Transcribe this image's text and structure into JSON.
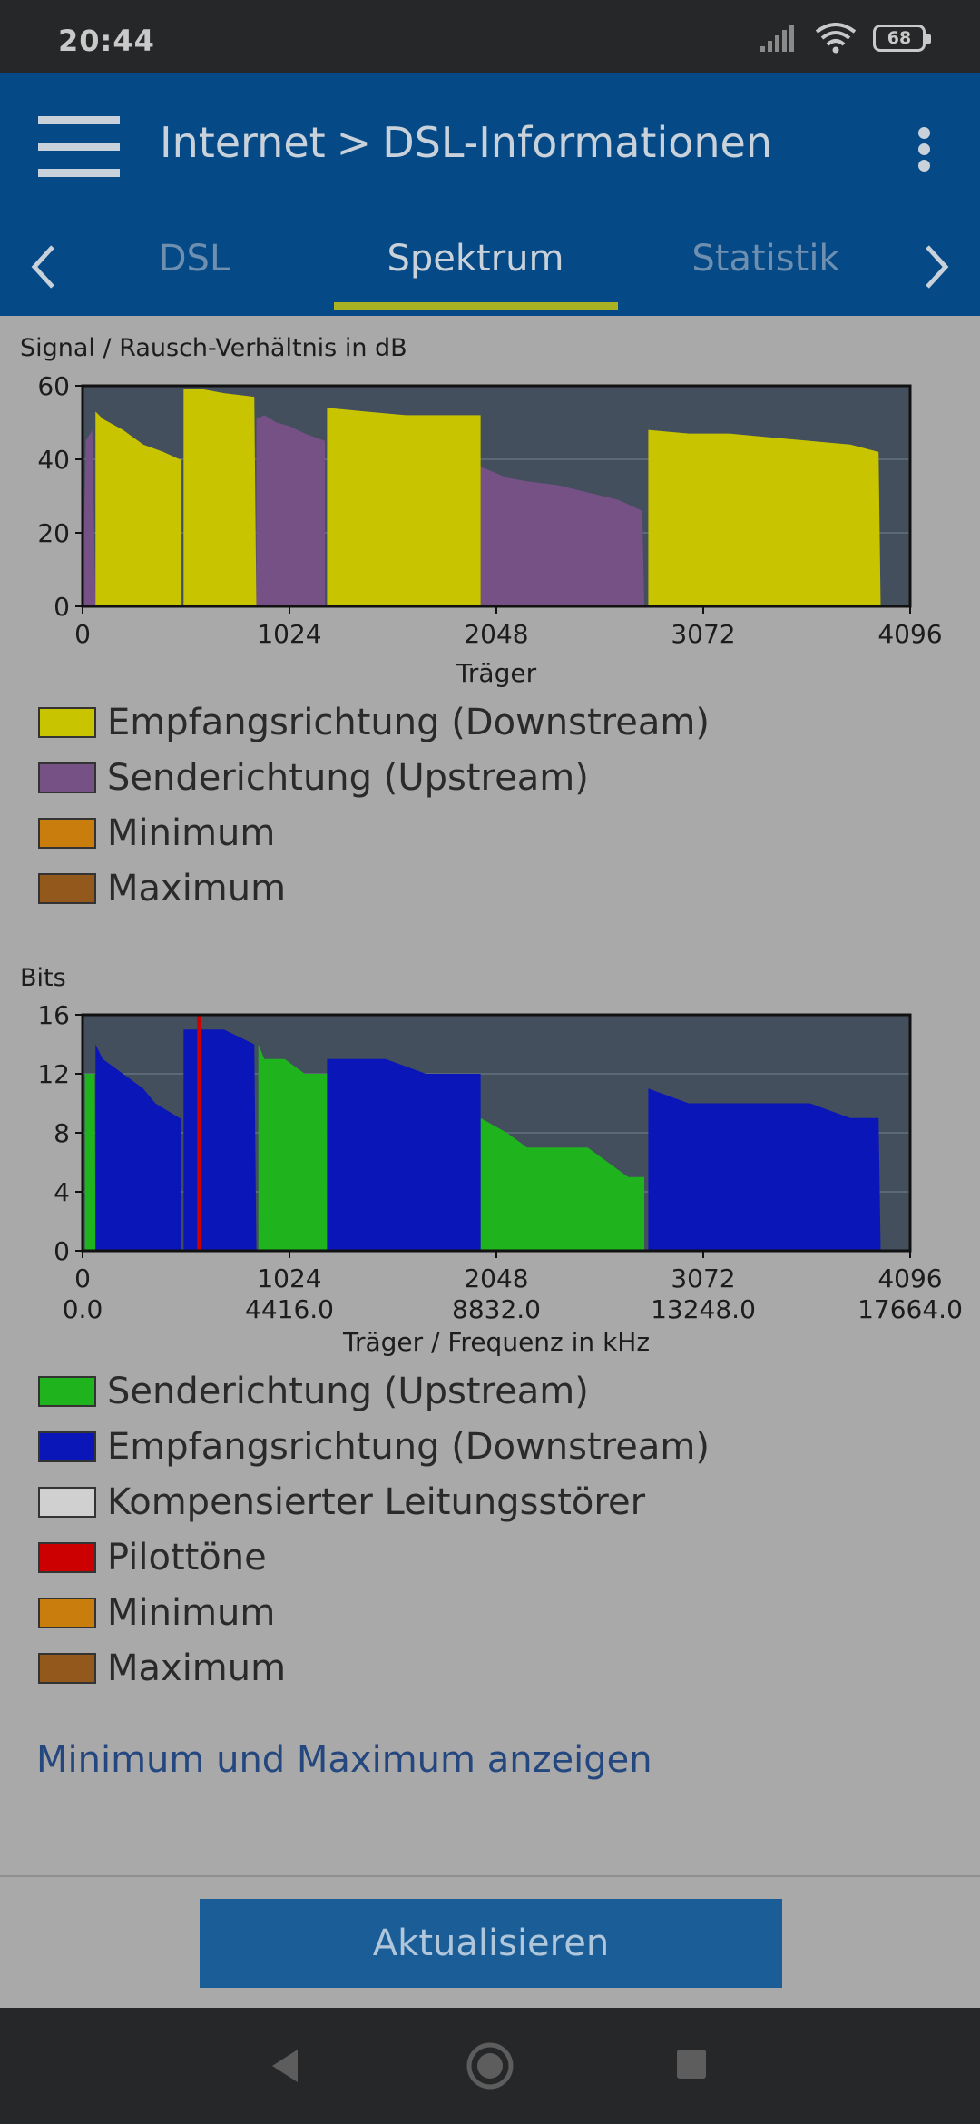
{
  "status_bar": {
    "time": "20:44",
    "battery": "68"
  },
  "header": {
    "crumb_root": "Internet",
    "crumb_sep": ">",
    "crumb_page": "DSL-Informationen"
  },
  "tabs": [
    {
      "label": "DSL"
    },
    {
      "label": "Spektrum"
    },
    {
      "label": "Statistik"
    }
  ],
  "snr": {
    "heading": "Signal / Rausch-Verhältnis in dB",
    "legend": [
      {
        "label": "Empfangsrichtung (Downstream)",
        "color": "#c8c400"
      },
      {
        "label": "Senderichtung (Upstream)",
        "color": "#755185"
      },
      {
        "label": "Minimum",
        "color": "#c97d0d"
      },
      {
        "label": "Maximum",
        "color": "#93591c"
      }
    ]
  },
  "bits": {
    "heading": "Bits",
    "legend": [
      {
        "label": "Senderichtung (Upstream)",
        "color": "#1fb41e"
      },
      {
        "label": "Empfangsrichtung (Downstream)",
        "color": "#0a16b8"
      },
      {
        "label": "Kompensierter Leitungsstörer",
        "color": "#d0d0d0"
      },
      {
        "label": "Pilottöne",
        "color": "#cc0000"
      },
      {
        "label": "Minimum",
        "color": "#c97d0d"
      },
      {
        "label": "Maximum",
        "color": "#93591c"
      }
    ]
  },
  "chart_data": [
    {
      "type": "area",
      "title": "Signal / Rausch-Verhältnis in dB",
      "xlabel": "Träger",
      "ylabel": "",
      "xlim": [
        0,
        4096
      ],
      "ylim": [
        0,
        60
      ],
      "x_ticks": [
        "0",
        "1024",
        "2048",
        "3072",
        "4096"
      ],
      "y_ticks": [
        "0",
        "20",
        "40",
        "60"
      ],
      "series": [
        {
          "name": "Senderichtung (Upstream)",
          "color": "#755185",
          "segments": [
            [
              [
                0,
                0
              ],
              [
                16,
                45
              ],
              [
                48,
                48
              ],
              [
                64,
                0
              ]
            ],
            [
              [
                860,
                51
              ],
              [
                900,
                52
              ],
              [
                960,
                50
              ],
              [
                1024,
                49
              ],
              [
                1100,
                47
              ],
              [
                1200,
                45
              ]
            ],
            [
              [
                1970,
                38
              ],
              [
                2100,
                35
              ],
              [
                2200,
                34
              ],
              [
                2350,
                33
              ],
              [
                2500,
                31
              ],
              [
                2650,
                29
              ],
              [
                2770,
                26
              ],
              [
                2780,
                0
              ]
            ]
          ]
        },
        {
          "name": "Empfangsrichtung (Downstream)",
          "color": "#c8c400",
          "segments": [
            [
              [
                64,
                53
              ],
              [
                100,
                51
              ],
              [
                200,
                48
              ],
              [
                300,
                44
              ],
              [
                400,
                42
              ],
              [
                480,
                40
              ],
              [
                490,
                40
              ]
            ],
            [
              [
                500,
                59
              ],
              [
                600,
                59
              ],
              [
                700,
                58
              ],
              [
                850,
                57
              ],
              [
                860,
                0
              ]
            ],
            [
              [
                1210,
                54
              ],
              [
                1400,
                53
              ],
              [
                1600,
                52
              ],
              [
                1800,
                52
              ],
              [
                1970,
                52
              ]
            ],
            [
              [
                2800,
                48
              ],
              [
                3000,
                47
              ],
              [
                3200,
                47
              ],
              [
                3400,
                46
              ],
              [
                3600,
                45
              ],
              [
                3800,
                44
              ],
              [
                3940,
                42
              ],
              [
                3950,
                0
              ]
            ]
          ]
        }
      ]
    },
    {
      "type": "area",
      "title": "Bits",
      "xlabel": "Träger / Frequenz in kHz",
      "ylabel": "",
      "xlim": [
        0,
        4096
      ],
      "ylim": [
        0,
        16
      ],
      "x_ticks": [
        "0",
        "1024",
        "2048",
        "3072",
        "4096"
      ],
      "x_ticks_secondary": [
        "0.0",
        "4416.0",
        "8832.0",
        "13248.0",
        "17664.0"
      ],
      "y_ticks": [
        "0",
        "4",
        "8",
        "12",
        "16"
      ],
      "series": [
        {
          "name": "Senderichtung (Upstream)",
          "color": "#1fb41e",
          "segments": [
            [
              [
                12,
                12
              ],
              [
                60,
                12
              ],
              [
                64,
                0
              ]
            ],
            [
              [
                870,
                14
              ],
              [
                900,
                13
              ],
              [
                1000,
                13
              ],
              [
                1100,
                12
              ],
              [
                1210,
                12
              ]
            ],
            [
              [
                1970,
                9
              ],
              [
                2100,
                8
              ],
              [
                2200,
                7
              ],
              [
                2400,
                7
              ],
              [
                2500,
                7
              ],
              [
                2600,
                6
              ],
              [
                2700,
                5
              ],
              [
                2780,
                5
              ]
            ]
          ]
        },
        {
          "name": "Empfangsrichtung (Downstream)",
          "color": "#0a16b8",
          "segments": [
            [
              [
                64,
                14
              ],
              [
                100,
                13
              ],
              [
                200,
                12
              ],
              [
                300,
                11
              ],
              [
                360,
                10
              ],
              [
                480,
                9
              ],
              [
                490,
                9
              ]
            ],
            [
              [
                500,
                15
              ],
              [
                700,
                15
              ],
              [
                850,
                14
              ],
              [
                860,
                0
              ]
            ],
            [
              [
                1210,
                13
              ],
              [
                1500,
                13
              ],
              [
                1700,
                12
              ],
              [
                1970,
                12
              ]
            ],
            [
              [
                2800,
                11
              ],
              [
                3000,
                10
              ],
              [
                3300,
                10
              ],
              [
                3600,
                10
              ],
              [
                3800,
                9
              ],
              [
                3940,
                9
              ],
              [
                3950,
                0
              ]
            ]
          ]
        },
        {
          "name": "Pilottöne",
          "color": "#cc0000",
          "points": [
            [
              576,
              16
            ]
          ]
        }
      ]
    }
  ]
}
